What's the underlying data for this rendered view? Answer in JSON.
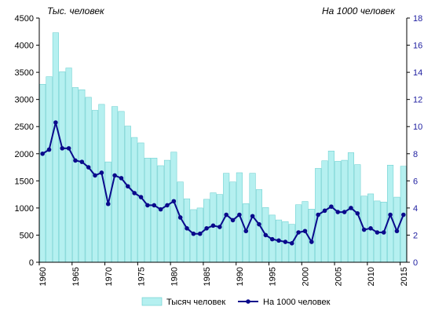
{
  "chart_data": {
    "type": "bar+line",
    "left_unit_label": "Тыс. человек",
    "right_unit_label": "На 1000 человек",
    "x": [
      1960,
      1961,
      1962,
      1963,
      1964,
      1965,
      1966,
      1967,
      1968,
      1969,
      1970,
      1971,
      1972,
      1973,
      1974,
      1975,
      1976,
      1977,
      1978,
      1979,
      1980,
      1981,
      1982,
      1983,
      1984,
      1985,
      1986,
      1987,
      1988,
      1989,
      1990,
      1991,
      1992,
      1993,
      1994,
      1995,
      1996,
      1997,
      1998,
      1999,
      2000,
      2001,
      2002,
      2003,
      2004,
      2005,
      2006,
      2007,
      2008,
      2009,
      2010,
      2011,
      2012,
      2013,
      2014,
      2015
    ],
    "x_tick_labels": [
      "1960",
      "1965",
      "1970",
      "1975",
      "1980",
      "1985",
      "1990",
      "1995",
      "2000",
      "2005",
      "2010",
      "2015"
    ],
    "y_left": {
      "min": 0,
      "max": 4500,
      "ticks": [
        "0",
        "500",
        "1000",
        "1500",
        "2000",
        "2500",
        "3000",
        "3500",
        "4000",
        "4500"
      ]
    },
    "y_right": {
      "min": 0,
      "max": 18,
      "ticks": [
        "0",
        "2",
        "4",
        "6",
        "8",
        "10",
        "12",
        "14",
        "16",
        "18"
      ]
    },
    "series": [
      {
        "name": "Тысяч человек",
        "kind": "bar",
        "axis": "left",
        "color": "#b5f0f0",
        "values": [
          3280,
          3420,
          4230,
          3510,
          3580,
          3220,
          3180,
          3040,
          2800,
          2910,
          1850,
          2870,
          2780,
          2510,
          2300,
          2200,
          1920,
          1920,
          1780,
          1880,
          2030,
          1480,
          1170,
          970,
          1000,
          1160,
          1280,
          1250,
          1640,
          1480,
          1650,
          1080,
          1640,
          1340,
          1010,
          870,
          780,
          750,
          700,
          1060,
          1120,
          980,
          1730,
          1870,
          2050,
          1860,
          1880,
          2020,
          1800,
          1220,
          1260,
          1130,
          1110,
          1790,
          1200,
          1770
        ]
      },
      {
        "name": "На 1000 человек",
        "kind": "line",
        "axis": "right",
        "color": "#0a0a8c",
        "values": [
          8.0,
          8.3,
          10.3,
          8.4,
          8.4,
          7.5,
          7.4,
          7.0,
          6.4,
          6.6,
          4.3,
          6.4,
          6.2,
          5.6,
          5.1,
          4.8,
          4.2,
          4.2,
          3.9,
          4.2,
          4.5,
          3.3,
          2.5,
          2.1,
          2.1,
          2.5,
          2.7,
          2.6,
          3.5,
          3.1,
          3.5,
          2.3,
          3.4,
          2.8,
          2.0,
          1.7,
          1.6,
          1.5,
          1.4,
          2.2,
          2.3,
          1.5,
          3.5,
          3.8,
          4.1,
          3.7,
          3.7,
          4.0,
          3.6,
          2.4,
          2.5,
          2.2,
          2.2,
          3.5,
          2.3,
          3.5
        ]
      }
    ],
    "grid": false,
    "legend_position": "bottom"
  }
}
